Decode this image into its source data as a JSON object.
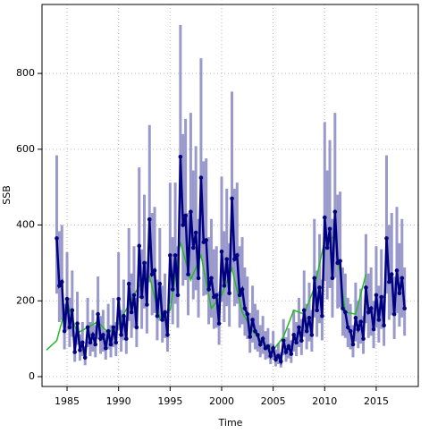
{
  "chart_data": {
    "type": "line",
    "xlabel": "Time",
    "ylabel": "SSB",
    "xlim": [
      1982.57,
      2019.08
    ],
    "ylim": [
      -26,
      982
    ],
    "xticks": [
      1985,
      1990,
      1995,
      2000,
      2005,
      2010,
      2015
    ],
    "yticks": [
      0,
      200,
      400,
      600,
      800
    ],
    "grid": true,
    "series": [
      {
        "color": "#000080",
        "band_color": "#9999cc",
        "x": [
          1984,
          1984.25,
          1984.5,
          1984.75,
          1985,
          1985.25,
          1985.5,
          1985.75,
          1986,
          1986.25,
          1986.5,
          1986.75,
          1987,
          1987.25,
          1987.5,
          1987.75,
          1988,
          1988.25,
          1988.5,
          1988.75,
          1989,
          1989.25,
          1989.5,
          1989.75,
          1990,
          1990.25,
          1990.5,
          1990.75,
          1991,
          1991.25,
          1991.5,
          1991.75,
          1992,
          1992.25,
          1992.5,
          1992.75,
          1993,
          1993.25,
          1993.5,
          1993.75,
          1994,
          1994.25,
          1994.5,
          1994.75,
          1995,
          1995.25,
          1995.5,
          1995.75,
          1996,
          1996.25,
          1996.5,
          1996.75,
          1997,
          1997.25,
          1997.5,
          1997.75,
          1998,
          1998.25,
          1998.5,
          1998.75,
          1999,
          1999.25,
          1999.5,
          1999.75,
          2000,
          2000.25,
          2000.5,
          2000.75,
          2001,
          2001.25,
          2001.5,
          2001.75,
          2002,
          2002.25,
          2002.5,
          2002.75,
          2003,
          2003.25,
          2003.5,
          2003.75,
          2004,
          2004.25,
          2004.5,
          2004.75,
          2005,
          2005.25,
          2005.5,
          2005.75,
          2006,
          2006.25,
          2006.5,
          2006.75,
          2007,
          2007.25,
          2007.5,
          2007.75,
          2008,
          2008.25,
          2008.5,
          2008.75,
          2009,
          2009.25,
          2009.5,
          2009.75,
          2010,
          2010.25,
          2010.5,
          2010.75,
          2011,
          2011.25,
          2011.5,
          2011.75,
          2012,
          2012.25,
          2012.5,
          2012.75,
          2013,
          2013.25,
          2013.5,
          2013.75,
          2014,
          2014.25,
          2014.5,
          2014.75,
          2015,
          2015.25,
          2015.5,
          2015.75,
          2016,
          2016.25,
          2016.5,
          2016.75,
          2017,
          2017.25,
          2017.5,
          2017.75
        ],
        "values": [
          365,
          240,
          250,
          120,
          205,
          130,
          175,
          65,
          140,
          70,
          90,
          50,
          130,
          90,
          110,
          85,
          165,
          100,
          110,
          75,
          120,
          85,
          130,
          90,
          205,
          110,
          160,
          100,
          245,
          170,
          215,
          130,
          345,
          210,
          300,
          190,
          415,
          270,
          280,
          160,
          245,
          150,
          170,
          110,
          320,
          230,
          320,
          215,
          580,
          400,
          425,
          270,
          435,
          340,
          380,
          260,
          525,
          355,
          360,
          230,
          260,
          210,
          215,
          140,
          330,
          240,
          310,
          220,
          470,
          310,
          320,
          215,
          230,
          180,
          165,
          105,
          150,
          120,
          110,
          85,
          100,
          75,
          80,
          55,
          75,
          45,
          55,
          40,
          95,
          65,
          80,
          60,
          110,
          90,
          130,
          95,
          175,
          120,
          155,
          110,
          260,
          175,
          235,
          160,
          420,
          340,
          390,
          260,
          435,
          300,
          305,
          180,
          170,
          130,
          120,
          85,
          155,
          125,
          145,
          100,
          235,
          170,
          180,
          125,
          215,
          150,
          210,
          135,
          365,
          250,
          270,
          165,
          280,
          220,
          260,
          180
        ],
        "lower": [
          219,
          144,
          150,
          72,
          123,
          78,
          105,
          39,
          84,
          42,
          54,
          30,
          78,
          54,
          66,
          51,
          99,
          60,
          66,
          45,
          72,
          51,
          78,
          54,
          123,
          66,
          96,
          60,
          147,
          102,
          129,
          78,
          207,
          126,
          180,
          114,
          249,
          162,
          168,
          96,
          147,
          90,
          102,
          66,
          192,
          138,
          192,
          129,
          348,
          240,
          255,
          162,
          261,
          204,
          228,
          156,
          315,
          213,
          216,
          138,
          156,
          126,
          129,
          84,
          198,
          144,
          186,
          132,
          282,
          186,
          192,
          129,
          138,
          108,
          99,
          63,
          90,
          72,
          66,
          51,
          60,
          45,
          48,
          33,
          45,
          27,
          33,
          24,
          57,
          39,
          48,
          36,
          66,
          54,
          78,
          57,
          105,
          72,
          93,
          66,
          156,
          105,
          141,
          96,
          252,
          204,
          234,
          156,
          261,
          180,
          183,
          108,
          102,
          78,
          72,
          51,
          93,
          75,
          87,
          60,
          141,
          102,
          108,
          75,
          129,
          90,
          126,
          81,
          219,
          150,
          162,
          99,
          168,
          132,
          156,
          108
        ],
        "upper": [
          584,
          384,
          400,
          192,
          328,
          208,
          280,
          104,
          224,
          112,
          144,
          80,
          208,
          144,
          176,
          136,
          264,
          160,
          176,
          120,
          192,
          136,
          208,
          144,
          328,
          176,
          256,
          160,
          392,
          272,
          344,
          208,
          552,
          336,
          480,
          304,
          664,
          432,
          448,
          256,
          392,
          240,
          272,
          176,
          512,
          368,
          512,
          344,
          928,
          640,
          680,
          432,
          696,
          544,
          608,
          416,
          840,
          568,
          576,
          368,
          416,
          336,
          344,
          224,
          528,
          384,
          496,
          352,
          752,
          496,
          512,
          344,
          368,
          288,
          264,
          168,
          240,
          192,
          176,
          136,
          160,
          120,
          128,
          88,
          120,
          72,
          88,
          64,
          152,
          104,
          128,
          96,
          176,
          144,
          208,
          152,
          280,
          192,
          248,
          176,
          416,
          280,
          376,
          256,
          672,
          544,
          624,
          416,
          696,
          480,
          488,
          288,
          272,
          208,
          192,
          136,
          248,
          200,
          232,
          160,
          376,
          272,
          288,
          200,
          344,
          240,
          336,
          216,
          584,
          400,
          432,
          264,
          448,
          352,
          416,
          288
        ]
      },
      {
        "color": "#22bb22",
        "x": [
          1983,
          1984,
          1985,
          1986,
          1987,
          1988,
          1989,
          1990,
          1991,
          1992,
          1993,
          1994,
          1995,
          1996,
          1997,
          1998,
          1999,
          2000,
          2001,
          2002,
          2003,
          2004,
          2005,
          2006,
          2007,
          2008,
          2009,
          2010,
          2011,
          2012,
          2013,
          2014
        ],
        "values": [
          70,
          95,
          195,
          115,
          130,
          145,
          115,
          140,
          190,
          240,
          265,
          155,
          175,
          355,
          255,
          320,
          180,
          215,
          285,
          170,
          120,
          90,
          70,
          105,
          175,
          165,
          235,
          360,
          370,
          170,
          165,
          270
        ]
      }
    ]
  }
}
